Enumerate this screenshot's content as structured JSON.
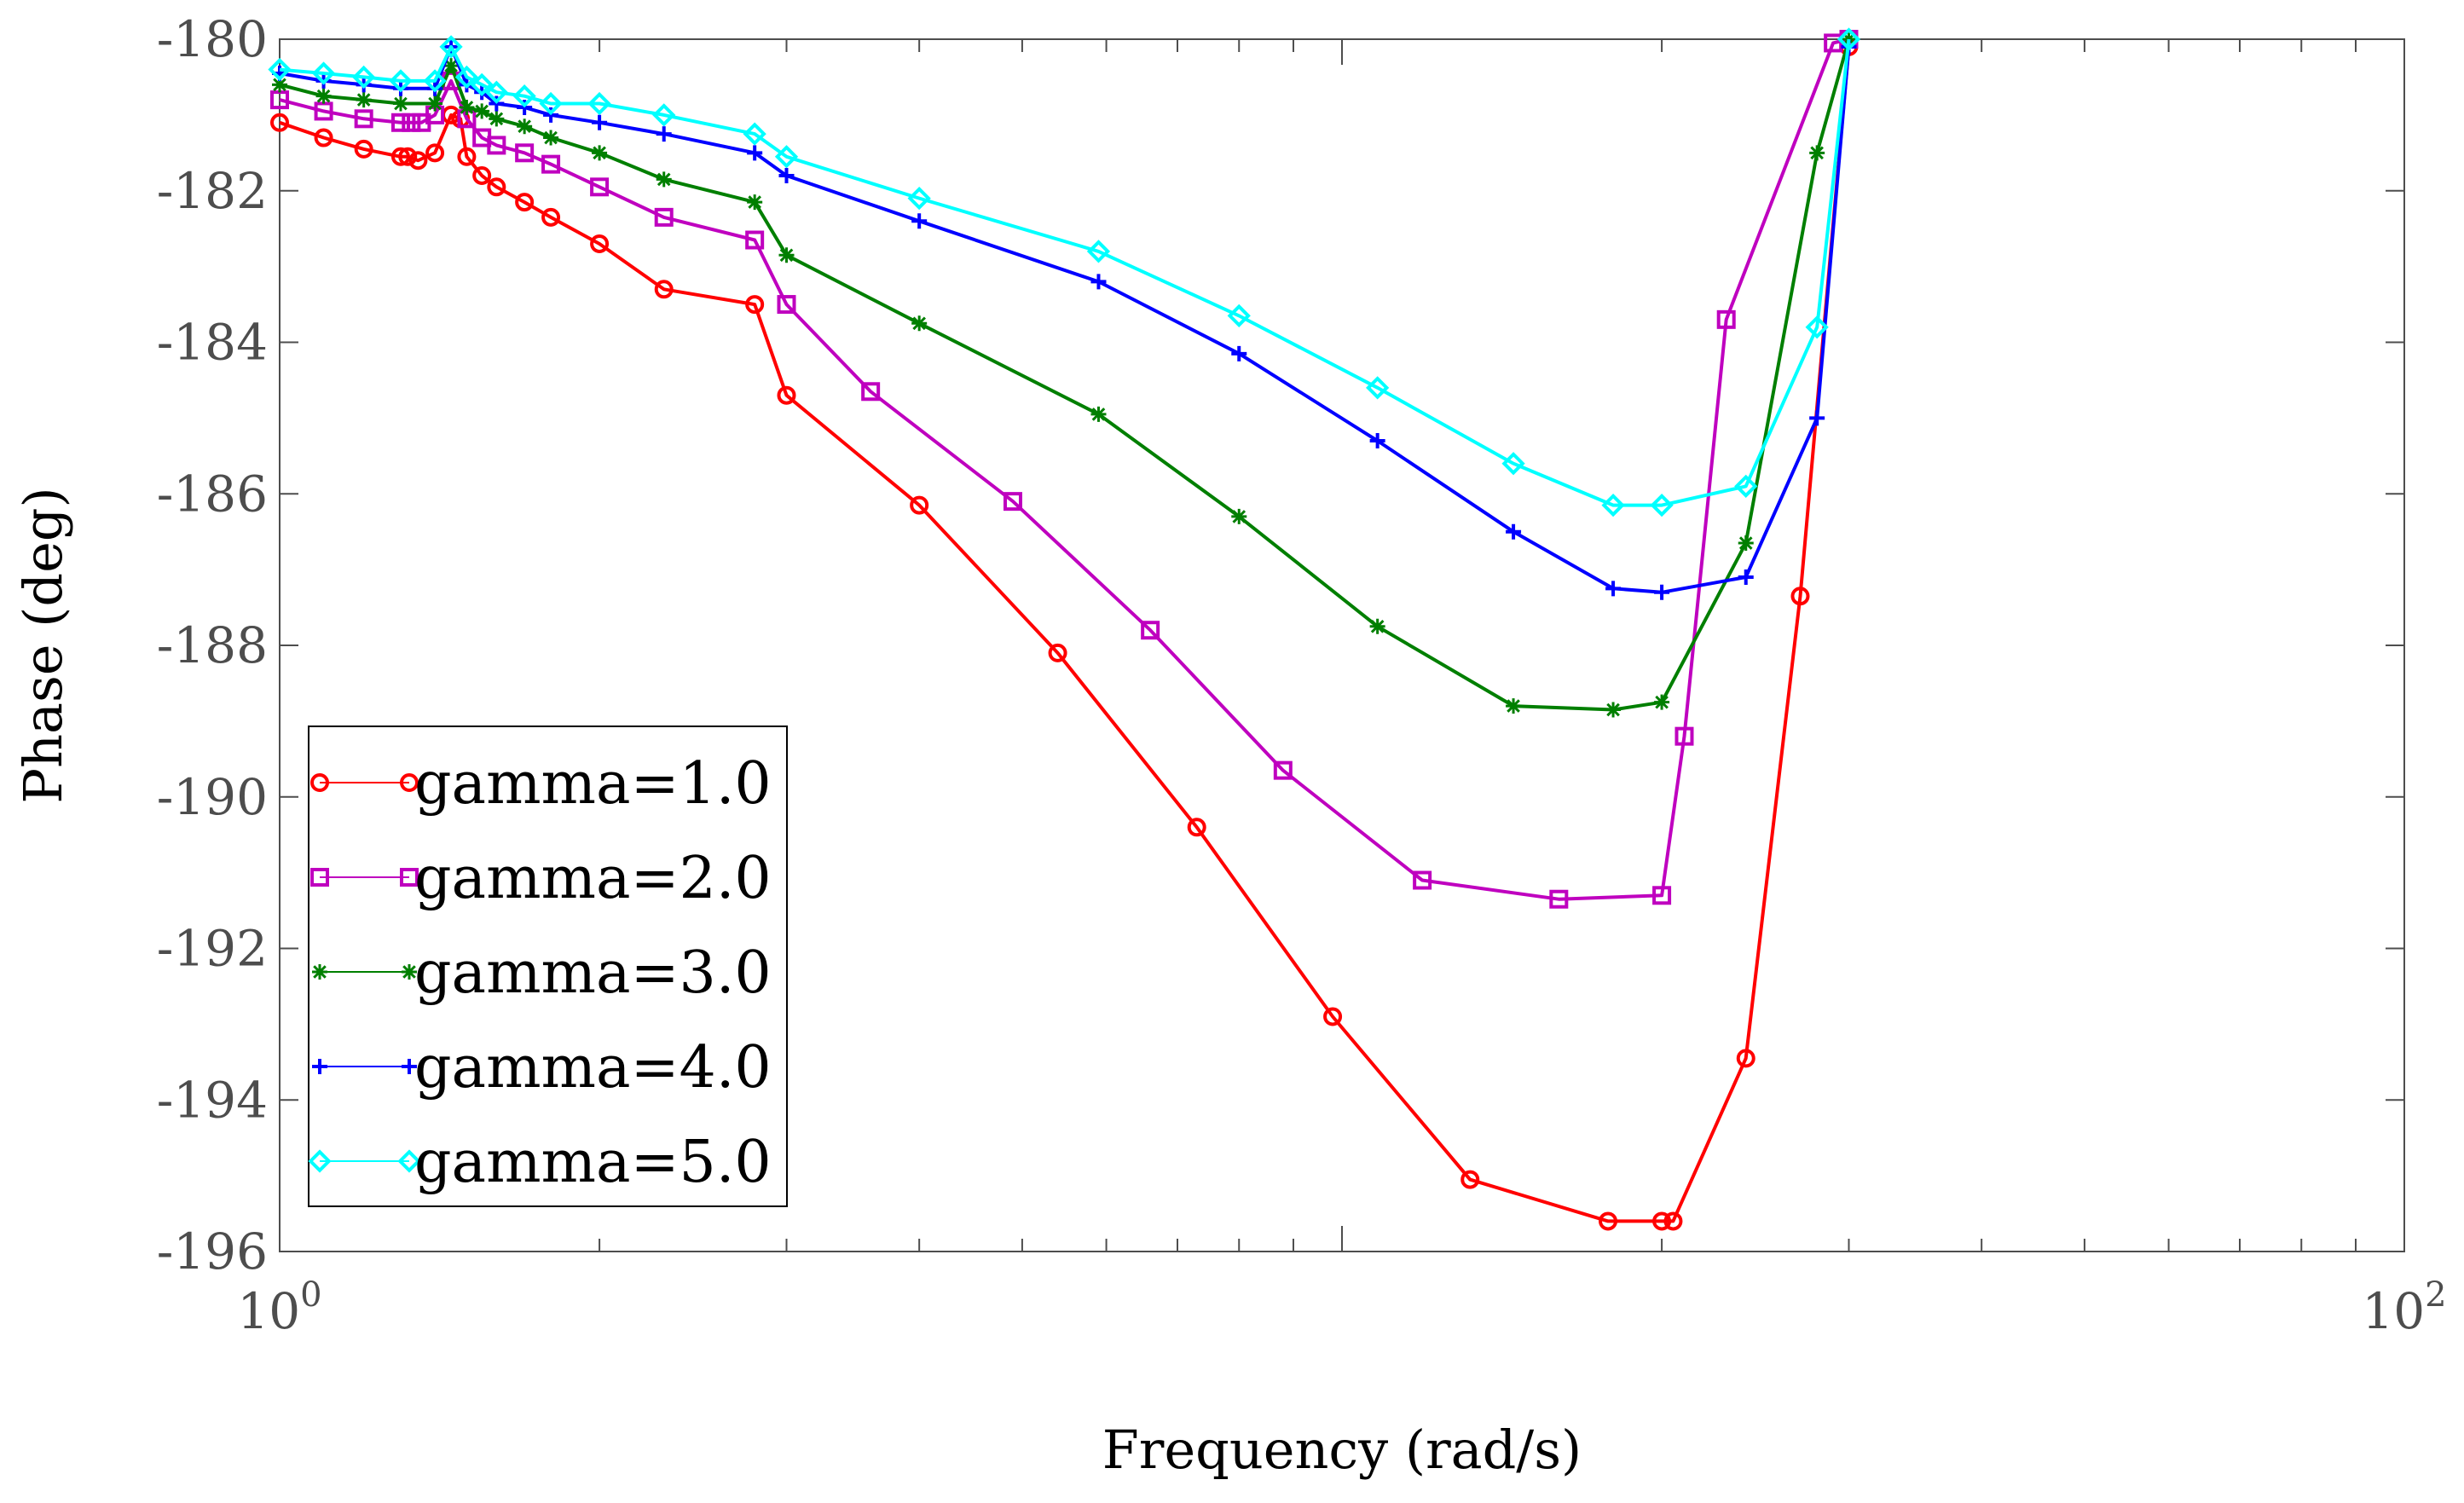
{
  "chart_data": {
    "type": "line",
    "xlabel": "Frequency (rad/s)",
    "ylabel": "Phase (deg)",
    "xscale": "log",
    "xlim": [
      1,
      100
    ],
    "ylim": [
      -196,
      -180
    ],
    "xticks": [
      {
        "value": 1,
        "base": "10",
        "exp": "0"
      },
      {
        "value": 100,
        "base": "10",
        "exp": "2"
      }
    ],
    "yticks": [
      -180,
      -182,
      -184,
      -186,
      -188,
      -190,
      -192,
      -194,
      -196
    ],
    "grid": false,
    "legend_position": "lower-left",
    "series": [
      {
        "name": "gamma=1.0",
        "color": "#ff0000",
        "marker": "circle",
        "x": [
          1.0,
          1.1,
          1.2,
          1.3,
          1.32,
          1.35,
          1.4,
          1.45,
          1.48,
          1.5,
          1.55,
          1.6,
          1.7,
          1.8,
          2.0,
          2.3,
          2.8,
          3.0,
          4.0,
          5.4,
          7.3,
          9.8,
          13.2,
          17.8,
          20.0,
          20.5,
          24.0,
          27.0,
          30.0
        ],
        "y": [
          -181.1,
          -181.3,
          -181.45,
          -181.55,
          -181.55,
          -181.6,
          -181.5,
          -181.0,
          -181.05,
          -181.55,
          -181.8,
          -181.95,
          -182.15,
          -182.35,
          -182.7,
          -183.3,
          -183.5,
          -184.7,
          -186.15,
          -188.1,
          -190.4,
          -192.9,
          -195.05,
          -195.6,
          -195.6,
          -195.6,
          -193.45,
          -187.35,
          -180.1
        ]
      },
      {
        "name": "gamma=2.0",
        "color": "#bf00bf",
        "marker": "square",
        "x": [
          1.0,
          1.1,
          1.2,
          1.3,
          1.33,
          1.36,
          1.4,
          1.45,
          1.5,
          1.55,
          1.6,
          1.7,
          1.8,
          2.0,
          2.3,
          2.8,
          3.0,
          3.6,
          4.9,
          6.6,
          8.8,
          11.9,
          16.0,
          20.0,
          21.0,
          23.0,
          29.0,
          30.0
        ],
        "y": [
          -180.8,
          -180.95,
          -181.05,
          -181.1,
          -181.1,
          -181.1,
          -181.0,
          -180.55,
          -181.05,
          -181.3,
          -181.4,
          -181.5,
          -181.65,
          -181.95,
          -182.35,
          -182.65,
          -183.5,
          -184.65,
          -186.1,
          -187.8,
          -189.65,
          -191.1,
          -191.35,
          -191.3,
          -189.2,
          -183.7,
          -180.05,
          -180.0
        ]
      },
      {
        "name": "gamma=3.0",
        "color": "#007f00",
        "marker": "star",
        "x": [
          1.0,
          1.1,
          1.2,
          1.3,
          1.4,
          1.45,
          1.5,
          1.55,
          1.6,
          1.7,
          1.8,
          2.0,
          2.3,
          2.8,
          3.0,
          4.0,
          5.9,
          8.0,
          10.8,
          14.5,
          18.0,
          20.0,
          24.0,
          28.0,
          30.0
        ],
        "y": [
          -180.6,
          -180.75,
          -180.8,
          -180.85,
          -180.85,
          -180.35,
          -180.9,
          -180.95,
          -181.05,
          -181.15,
          -181.3,
          -181.5,
          -181.85,
          -182.15,
          -182.85,
          -183.75,
          -184.95,
          -186.3,
          -187.75,
          -188.8,
          -188.85,
          -188.75,
          -186.65,
          -181.5,
          -180.0
        ]
      },
      {
        "name": "gamma=4.0",
        "color": "#0000ff",
        "marker": "plus",
        "x": [
          1.0,
          1.1,
          1.2,
          1.3,
          1.4,
          1.45,
          1.5,
          1.55,
          1.6,
          1.7,
          1.8,
          2.0,
          2.3,
          2.8,
          3.0,
          4.0,
          5.9,
          8.0,
          10.8,
          14.5,
          18.0,
          20.0,
          24.0,
          28.0,
          30.0
        ],
        "y": [
          -180.45,
          -180.55,
          -180.6,
          -180.65,
          -180.65,
          -180.1,
          -180.6,
          -180.7,
          -180.85,
          -180.9,
          -181.0,
          -181.1,
          -181.25,
          -181.5,
          -181.8,
          -182.4,
          -183.2,
          -184.15,
          -185.3,
          -186.5,
          -187.25,
          -187.3,
          -187.1,
          -185.0,
          -180.1
        ]
      },
      {
        "name": "gamma=5.0",
        "color": "#00ffff",
        "marker": "diamond",
        "x": [
          1.0,
          1.1,
          1.2,
          1.3,
          1.4,
          1.45,
          1.5,
          1.55,
          1.6,
          1.7,
          1.8,
          2.0,
          2.3,
          2.8,
          3.0,
          4.0,
          5.9,
          8.0,
          10.8,
          14.5,
          18.0,
          20.0,
          24.0,
          28.0,
          30.0
        ],
        "y": [
          -180.4,
          -180.45,
          -180.5,
          -180.55,
          -180.55,
          -180.1,
          -180.5,
          -180.6,
          -180.7,
          -180.75,
          -180.85,
          -180.85,
          -181.0,
          -181.25,
          -181.55,
          -182.1,
          -182.8,
          -183.65,
          -184.6,
          -185.6,
          -186.15,
          -186.15,
          -185.9,
          -183.8,
          -180.0
        ]
      }
    ]
  }
}
